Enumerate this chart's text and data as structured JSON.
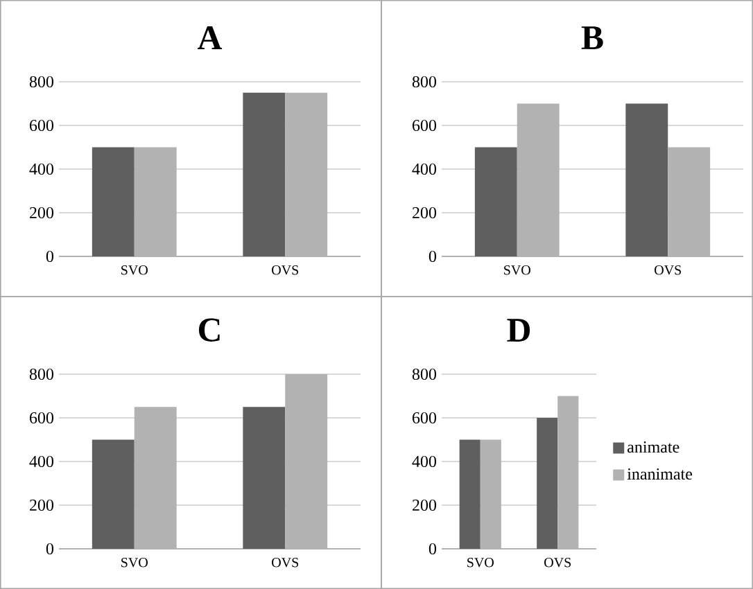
{
  "chart_data": [
    {
      "type": "bar",
      "title": "A",
      "categories": [
        "SVO",
        "OVS"
      ],
      "series": [
        {
          "color": "#5f5f5f",
          "values": [
            500,
            750
          ]
        },
        {
          "color": "#b2b2b2",
          "values": [
            500,
            750
          ]
        }
      ],
      "ylim": [
        0,
        800
      ],
      "yticks": [
        0,
        200,
        400,
        600,
        800
      ],
      "grid": "y"
    },
    {
      "type": "bar",
      "title": "B",
      "categories": [
        "SVO",
        "OVS"
      ],
      "series": [
        {
          "color": "#5f5f5f",
          "values": [
            500,
            700
          ]
        },
        {
          "color": "#b2b2b2",
          "values": [
            700,
            500
          ]
        }
      ],
      "ylim": [
        0,
        800
      ],
      "yticks": [
        0,
        200,
        400,
        600,
        800
      ],
      "grid": "y"
    },
    {
      "type": "bar",
      "title": "C",
      "categories": [
        "SVO",
        "OVS"
      ],
      "series": [
        {
          "color": "#5f5f5f",
          "values": [
            500,
            650
          ]
        },
        {
          "color": "#b2b2b2",
          "values": [
            650,
            800
          ]
        }
      ],
      "ylim": [
        0,
        800
      ],
      "yticks": [
        0,
        200,
        400,
        600,
        800
      ],
      "grid": "y"
    },
    {
      "type": "bar",
      "title": "D",
      "categories": [
        "SVO",
        "OVS"
      ],
      "series": [
        {
          "name": "animate",
          "color": "#5f5f5f",
          "values": [
            500,
            600
          ]
        },
        {
          "name": "inanimate",
          "color": "#b2b2b2",
          "values": [
            500,
            700
          ]
        }
      ],
      "ylim": [
        0,
        800
      ],
      "yticks": [
        0,
        200,
        400,
        600,
        800
      ],
      "grid": "y",
      "legend": "right"
    }
  ]
}
